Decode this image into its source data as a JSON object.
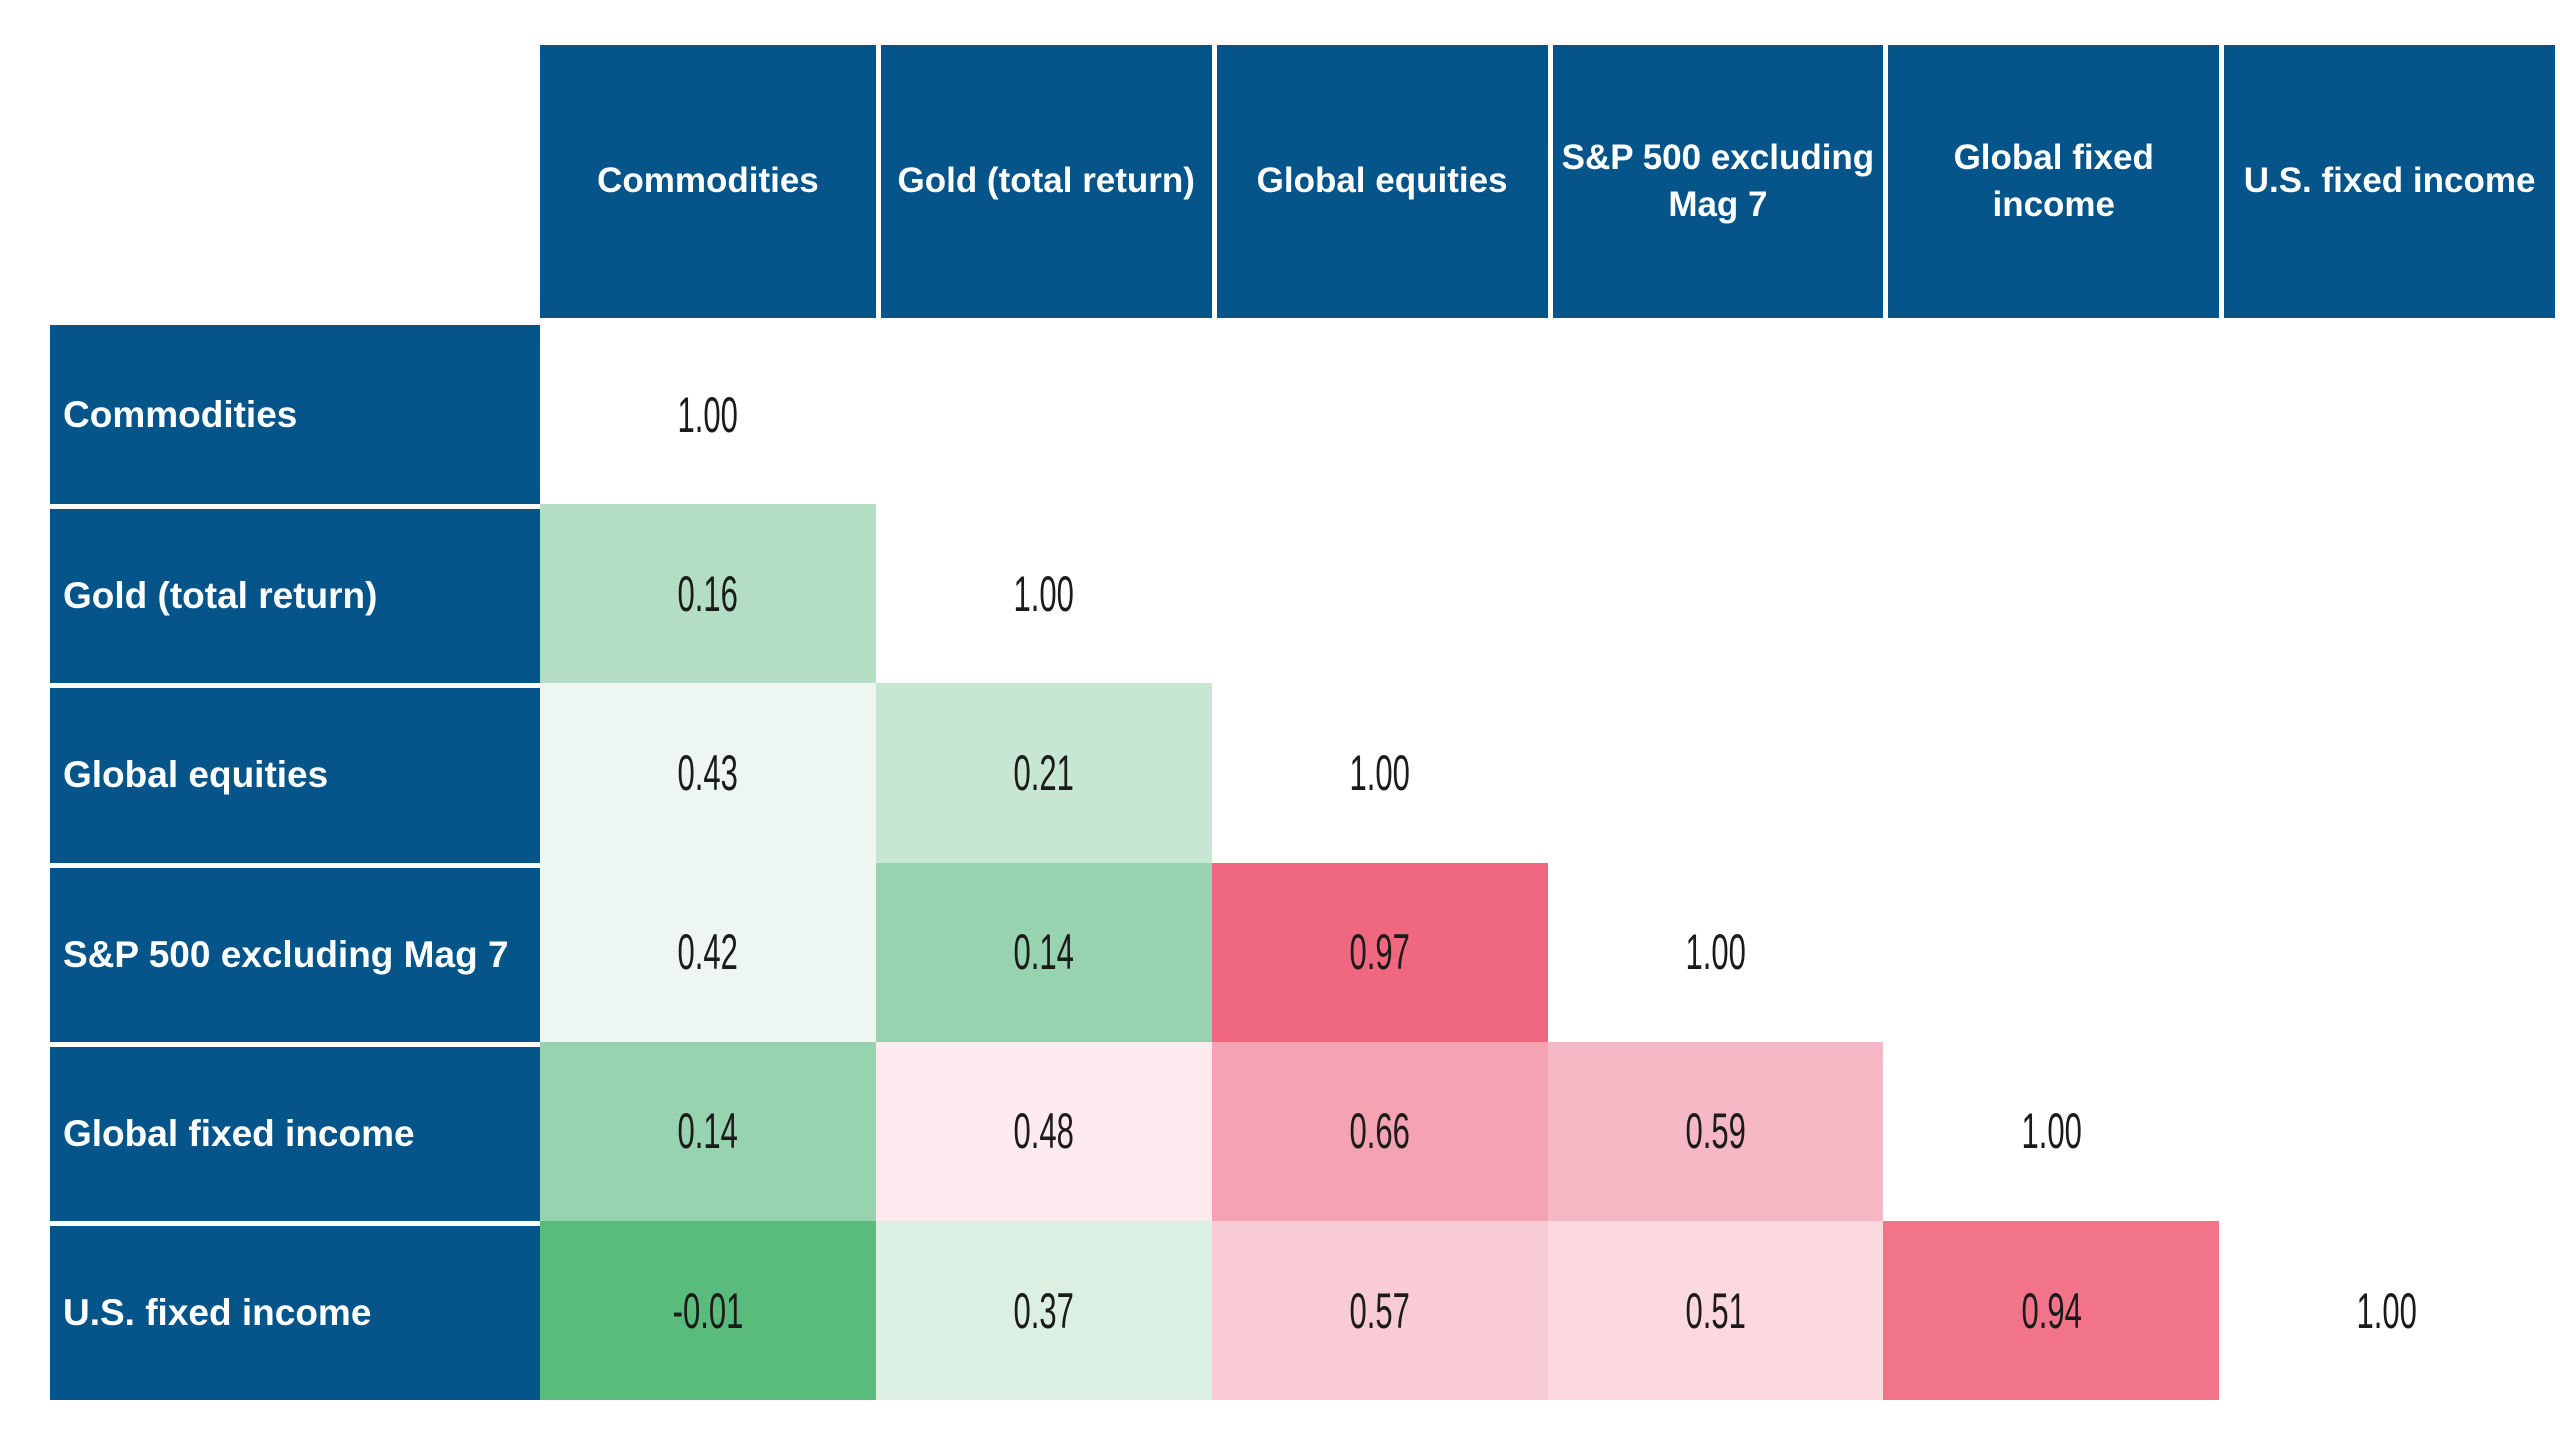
{
  "colors": {
    "header_blue": "#05548a",
    "value_text": "#1b1b1b",
    "background": "#ffffff"
  },
  "table": {
    "column_headers": [
      "Commodities",
      "Gold (total return)",
      "Global equities",
      "S&P 500 excluding Mag 7",
      "Global fixed income",
      "U.S. fixed income"
    ],
    "rows": [
      {
        "label": "Commodities",
        "cells": [
          {
            "v": "1.00",
            "bg": "#ffffff"
          },
          null,
          null,
          null,
          null,
          null
        ]
      },
      {
        "label": "Gold (total return)",
        "cells": [
          {
            "v": "0.16",
            "bg": "#b4dec3"
          },
          {
            "v": "1.00",
            "bg": "#ffffff"
          },
          null,
          null,
          null,
          null
        ]
      },
      {
        "label": "Global equities",
        "cells": [
          {
            "v": "0.43",
            "bg": "#edf6f0"
          },
          {
            "v": "0.21",
            "bg": "#c7e7d2"
          },
          {
            "v": "1.00",
            "bg": "#ffffff"
          },
          null,
          null,
          null
        ]
      },
      {
        "label": "S&P 500 excluding Mag 7",
        "cells": [
          {
            "v": "0.42",
            "bg": "#edf6f0"
          },
          {
            "v": "0.14",
            "bg": "#97d3ae"
          },
          {
            "v": "0.97",
            "bg": "#f0687f"
          },
          {
            "v": "1.00",
            "bg": "#ffffff"
          },
          null,
          null
        ]
      },
      {
        "label": "Global fixed income",
        "cells": [
          {
            "v": "0.14",
            "bg": "#97d3ae"
          },
          {
            "v": "0.48",
            "bg": "#fdeaee"
          },
          {
            "v": "0.66",
            "bg": "#f5a2b2"
          },
          {
            "v": "0.59",
            "bg": "#f6b8c4"
          },
          {
            "v": "1.00",
            "bg": "#ffffff"
          },
          null
        ]
      },
      {
        "label": "U.S. fixed income",
        "cells": [
          {
            "v": "-0.01",
            "bg": "#5abc7c"
          },
          {
            "v": "0.37",
            "bg": "#dbf0e2"
          },
          {
            "v": "0.57",
            "bg": "#f9ccd5"
          },
          {
            "v": "0.51",
            "bg": "#fbd9df"
          },
          {
            "v": "0.94",
            "bg": "#f27488"
          },
          {
            "v": "1.00",
            "bg": "#ffffff"
          }
        ]
      }
    ]
  },
  "chart_data": {
    "type": "heatmap",
    "categories": [
      "Commodities",
      "Gold (total return)",
      "Global equities",
      "S&P 500 excluding Mag 7",
      "Global fixed income",
      "U.S. fixed income"
    ],
    "matrix": [
      [
        1.0,
        null,
        null,
        null,
        null,
        null
      ],
      [
        0.16,
        1.0,
        null,
        null,
        null,
        null
      ],
      [
        0.43,
        0.21,
        1.0,
        null,
        null,
        null
      ],
      [
        0.42,
        0.14,
        0.97,
        1.0,
        null,
        null
      ],
      [
        0.14,
        0.48,
        0.66,
        0.59,
        1.0,
        null
      ],
      [
        -0.01,
        0.37,
        0.57,
        0.51,
        0.94,
        1.0
      ]
    ],
    "value_range": [
      -0.01,
      1.0
    ],
    "colormap": {
      "low": "#5abc7c",
      "mid": "#ffffff",
      "high": "#f0687f",
      "note": "green = low correlation, red = high correlation; diagonal cells uncolored"
    },
    "layout": "lower-triangle correlation matrix, row/column headers on navy blue"
  }
}
